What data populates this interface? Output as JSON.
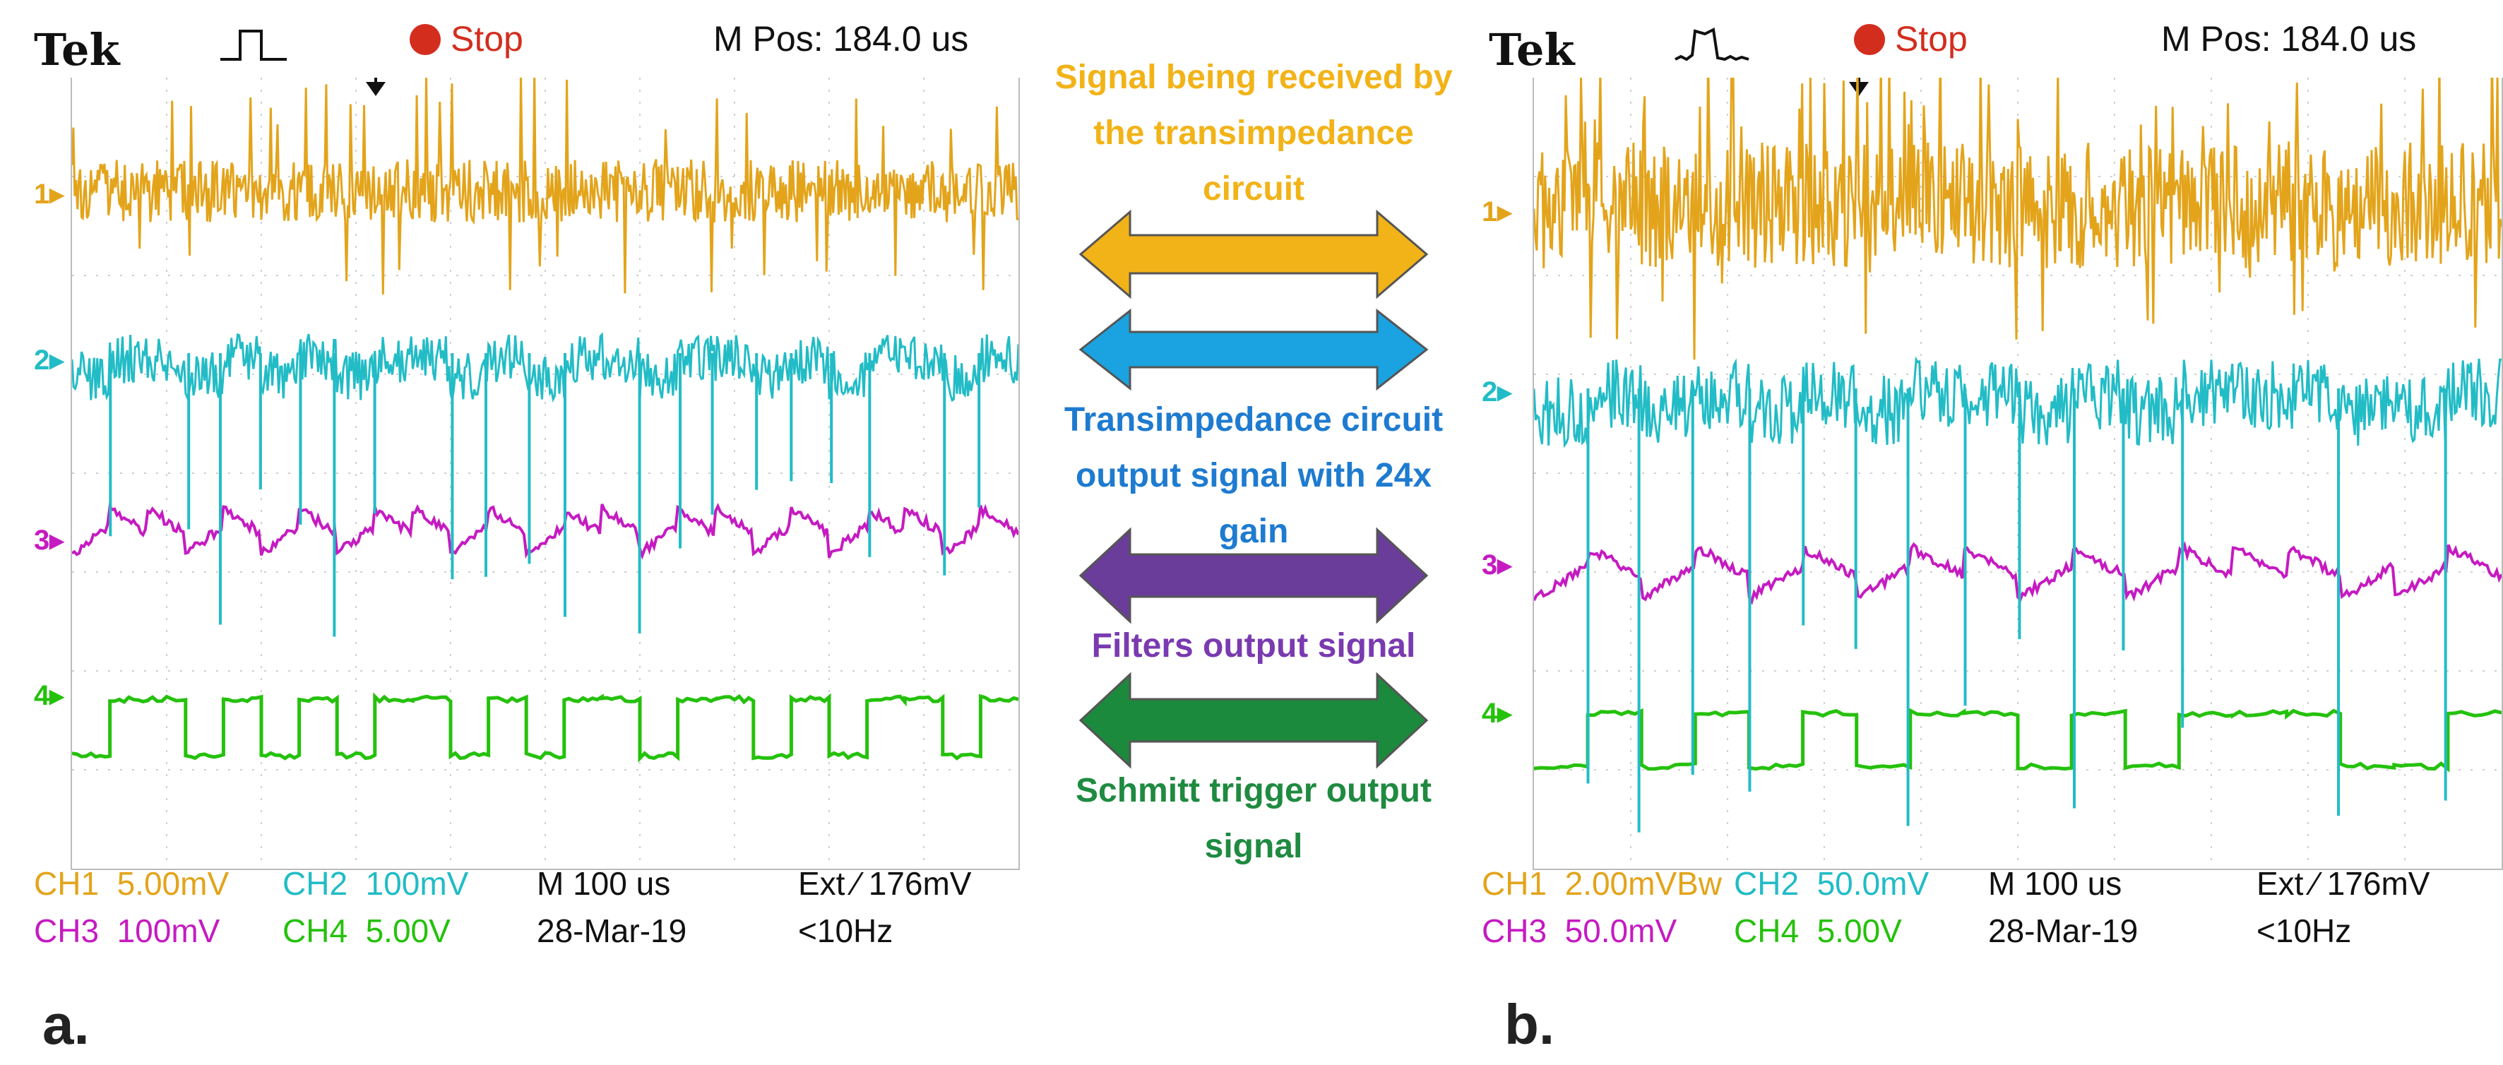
{
  "colors": {
    "ch1": "#e3a41b",
    "ch2": "#22bcc6",
    "ch3": "#c51bc1",
    "ch4": "#25c10c",
    "stop": "#d32d1e",
    "arrow1": "#f2b318",
    "arrow2": "#1aa3e0",
    "arrow3": "#6a3d9a",
    "arrow4": "#1c8a3c",
    "text1": "#f2b318",
    "text2": "#1e7bd0",
    "text3": "#7a3ab0",
    "text4": "#1f8a40"
  },
  "scope_a": {
    "panel_label": "a.",
    "brand": "Tek",
    "trigger_icon": "single-pulse-trigger-icon",
    "status": "Stop",
    "m_pos": "M Pos: 184.0 us",
    "channel_markers": [
      "1",
      "2",
      "3",
      "4"
    ],
    "ch1_label": "CH1",
    "ch1_scale": "5.00mV",
    "ch2_label": "CH2",
    "ch2_scale": "100mV",
    "ch3_label": "CH3",
    "ch3_scale": "100mV",
    "ch4_label": "CH4",
    "ch4_scale": "5.00V",
    "timebase": "M 100 us",
    "date": "28-Mar-19",
    "trigger": "Ext ⁄ 176mV",
    "freq": "<10Hz"
  },
  "scope_b": {
    "panel_label": "b.",
    "brand": "Tek",
    "trigger_icon": "noisy-pulse-trigger-icon",
    "status": "Stop",
    "m_pos": "M Pos: 184.0 us",
    "channel_markers": [
      "1",
      "2",
      "3",
      "4"
    ],
    "ch1_label": "CH1",
    "ch1_scale": "2.00mVBw",
    "ch2_label": "CH2",
    "ch2_scale": "50.0mV",
    "ch3_label": "CH3",
    "ch3_scale": "50.0mV",
    "ch4_label": "CH4",
    "ch4_scale": "5.00V",
    "timebase": "M 100 us",
    "date": "28-Mar-19",
    "trigger": "Ext ⁄ 176mV",
    "freq": "<10Hz"
  },
  "legend": {
    "ch1_text": "Signal being received by the transimpedance circuit",
    "ch2_text": "Transimpedance circuit output signal with 24x gain",
    "ch3_text": "Filters output signal",
    "ch4_text": "Schmitt trigger output signal"
  },
  "chart_data": [
    {
      "type": "line",
      "title": "a.",
      "x_unit": "us",
      "time_per_div_us": 100,
      "x_divisions": 10,
      "series": [
        {
          "name": "CH1",
          "scale": "5.00mV/div",
          "description": "noisy received signal with sparse spikes"
        },
        {
          "name": "CH2",
          "scale": "100mV/div",
          "description": "transimpedance output with negative spikes"
        },
        {
          "name": "CH3",
          "scale": "100mV/div",
          "description": "filtered sawtooth-like wave"
        },
        {
          "name": "CH4",
          "scale": "5.00V/div",
          "description": "Schmitt trigger square wave",
          "levels": [
            0,
            1,
            1,
            0,
            1,
            0,
            1,
            0,
            1,
            1,
            0,
            1,
            0,
            1,
            1,
            0,
            1,
            1,
            0,
            1,
            0,
            1,
            1,
            0,
            1
          ]
        }
      ]
    },
    {
      "type": "line",
      "title": "b.",
      "x_unit": "us",
      "time_per_div_us": 100,
      "x_divisions": 10,
      "series": [
        {
          "name": "CH1",
          "scale": "2.00mV/div (Bw)",
          "description": "dense noisy received signal"
        },
        {
          "name": "CH2",
          "scale": "50.0mV/div",
          "description": "transimpedance output with tall spikes"
        },
        {
          "name": "CH3",
          "scale": "50.0mV/div",
          "description": "filtered wave"
        },
        {
          "name": "CH4",
          "scale": "5.00V/div",
          "description": "Schmitt trigger square wave",
          "levels": [
            0,
            1,
            0,
            1,
            0,
            1,
            0,
            1,
            1,
            0,
            1,
            0,
            1,
            1,
            1,
            0,
            0,
            1
          ]
        }
      ]
    }
  ]
}
